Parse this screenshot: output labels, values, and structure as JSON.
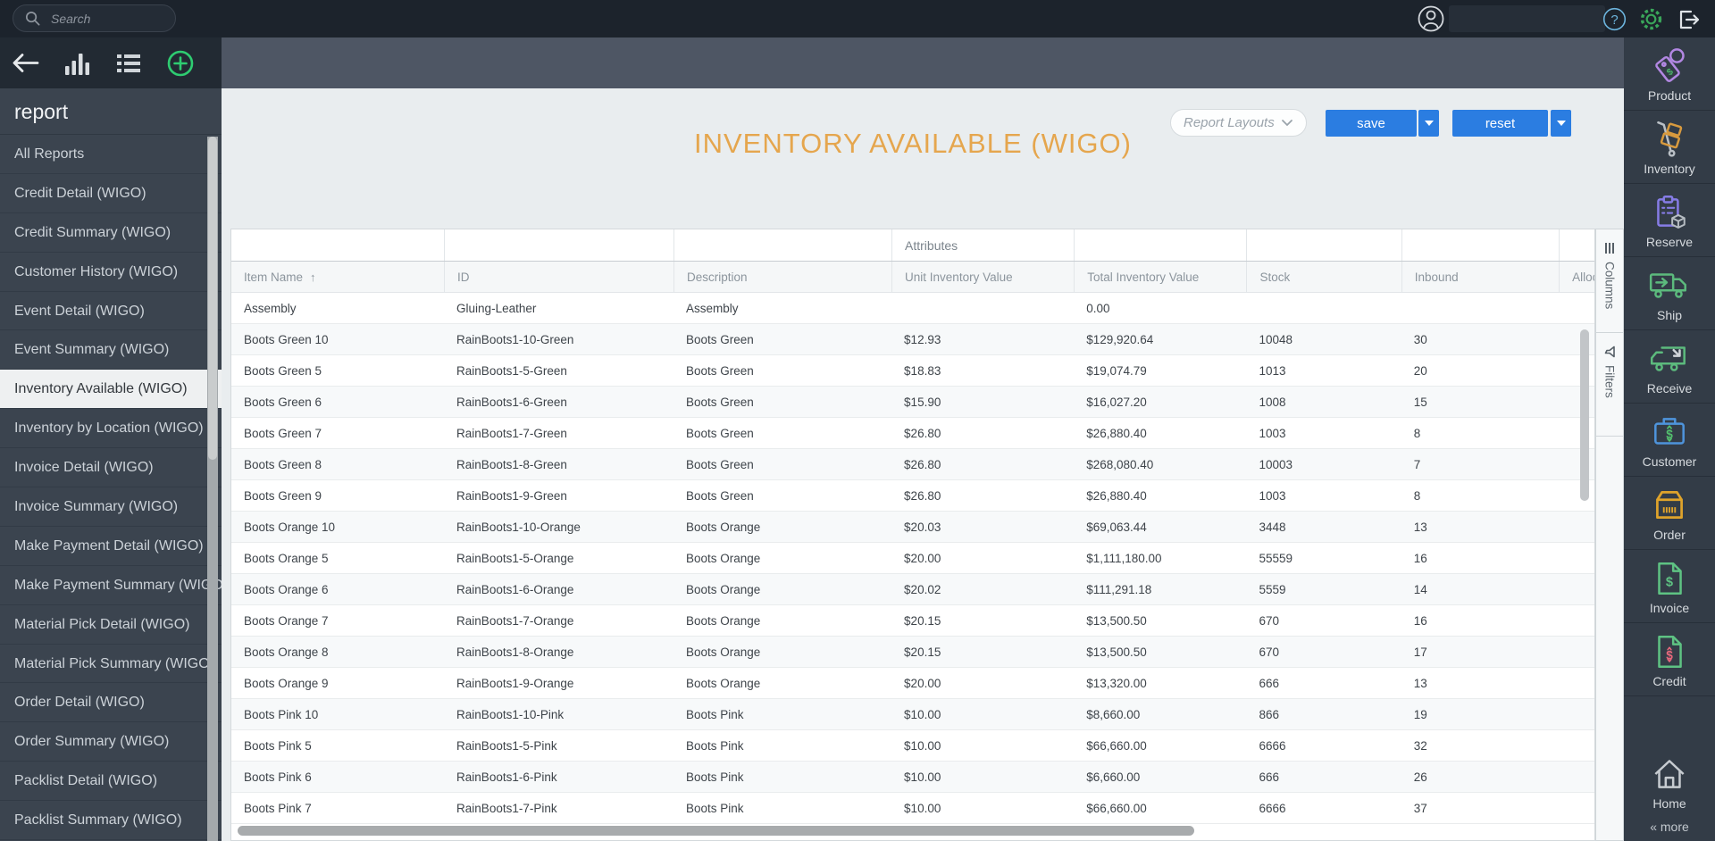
{
  "topbar": {
    "search_placeholder": "Search"
  },
  "sidebar": {
    "heading": "report",
    "selected": "Inventory Available (WIGO)",
    "items": [
      "All Reports",
      "Credit Detail (WIGO)",
      "Credit Summary (WIGO)",
      "Customer History (WIGO)",
      "Event Detail (WIGO)",
      "Event Summary (WIGO)",
      "Inventory Available (WIGO)",
      "Inventory by Location (WIGO)",
      "Invoice Detail (WIGO)",
      "Invoice Summary (WIGO)",
      "Make Payment Detail (WIGO)",
      "Make Payment Summary (WIGO)",
      "Material Pick Detail (WIGO)",
      "Material Pick Summary (WIGO)",
      "Order Detail (WIGO)",
      "Order Summary (WIGO)",
      "Packlist Detail (WIGO)",
      "Packlist Summary (WIGO)"
    ]
  },
  "header": {
    "title": "INVENTORY AVAILABLE (WIGO)",
    "report_layouts": "Report Layouts",
    "save": "save",
    "reset": "reset"
  },
  "table": {
    "group_header": "Attributes",
    "columns": [
      "Item Name",
      "ID",
      "Description",
      "Unit Inventory Value",
      "Total Inventory Value",
      "Stock",
      "Inbound",
      "Allocated"
    ],
    "sort_column": "Item Name",
    "sort_direction": "asc",
    "sort_arrow": "↑",
    "rows": [
      [
        "Assembly",
        "Gluing-Leather",
        "Assembly",
        "",
        "0.00",
        "",
        "",
        ""
      ],
      [
        "Boots Green 10",
        "RainBoots1-10-Green",
        "Boots Green",
        "$12.93",
        "$129,920.64",
        "10048",
        "30",
        ""
      ],
      [
        "Boots Green 5",
        "RainBoots1-5-Green",
        "Boots Green",
        "$18.83",
        "$19,074.79",
        "1013",
        "20",
        ""
      ],
      [
        "Boots Green 6",
        "RainBoots1-6-Green",
        "Boots Green",
        "$15.90",
        "$16,027.20",
        "1008",
        "15",
        ""
      ],
      [
        "Boots Green 7",
        "RainBoots1-7-Green",
        "Boots Green",
        "$26.80",
        "$26,880.40",
        "1003",
        "8",
        ""
      ],
      [
        "Boots Green 8",
        "RainBoots1-8-Green",
        "Boots Green",
        "$26.80",
        "$268,080.40",
        "10003",
        "7",
        ""
      ],
      [
        "Boots Green 9",
        "RainBoots1-9-Green",
        "Boots Green",
        "$26.80",
        "$26,880.40",
        "1003",
        "8",
        ""
      ],
      [
        "Boots Orange 10",
        "RainBoots1-10-Orange",
        "Boots Orange",
        "$20.03",
        "$69,063.44",
        "3448",
        "13",
        ""
      ],
      [
        "Boots Orange 5",
        "RainBoots1-5-Orange",
        "Boots Orange",
        "$20.00",
        "$1,111,180.00",
        "55559",
        "16",
        ""
      ],
      [
        "Boots Orange 6",
        "RainBoots1-6-Orange",
        "Boots Orange",
        "$20.02",
        "$111,291.18",
        "5559",
        "14",
        ""
      ],
      [
        "Boots Orange 7",
        "RainBoots1-7-Orange",
        "Boots Orange",
        "$20.15",
        "$13,500.50",
        "670",
        "16",
        ""
      ],
      [
        "Boots Orange 8",
        "RainBoots1-8-Orange",
        "Boots Orange",
        "$20.15",
        "$13,500.50",
        "670",
        "17",
        ""
      ],
      [
        "Boots Orange 9",
        "RainBoots1-9-Orange",
        "Boots Orange",
        "$20.00",
        "$13,320.00",
        "666",
        "13",
        ""
      ],
      [
        "Boots Pink 10",
        "RainBoots1-10-Pink",
        "Boots Pink",
        "$10.00",
        "$8,660.00",
        "866",
        "19",
        ""
      ],
      [
        "Boots Pink 5",
        "RainBoots1-5-Pink",
        "Boots Pink",
        "$10.00",
        "$66,660.00",
        "6666",
        "32",
        ""
      ],
      [
        "Boots Pink 6",
        "RainBoots1-6-Pink",
        "Boots Pink",
        "$10.00",
        "$6,660.00",
        "666",
        "26",
        ""
      ],
      [
        "Boots Pink 7",
        "RainBoots1-7-Pink",
        "Boots Pink",
        "$10.00",
        "$66,660.00",
        "6666",
        "37",
        ""
      ]
    ]
  },
  "side_tabs": {
    "columns": "Columns",
    "filters": "Filters"
  },
  "right_sidebar": {
    "items": [
      "Product",
      "Inventory",
      "Reserve",
      "Ship",
      "Receive",
      "Customer",
      "Order",
      "Invoice",
      "Credit"
    ],
    "home": "Home",
    "more": "« more"
  },
  "colors": {
    "accent_blue": "#2b7de1",
    "title_orange": "#e5a64e",
    "accent_green": "#2ecc71"
  }
}
